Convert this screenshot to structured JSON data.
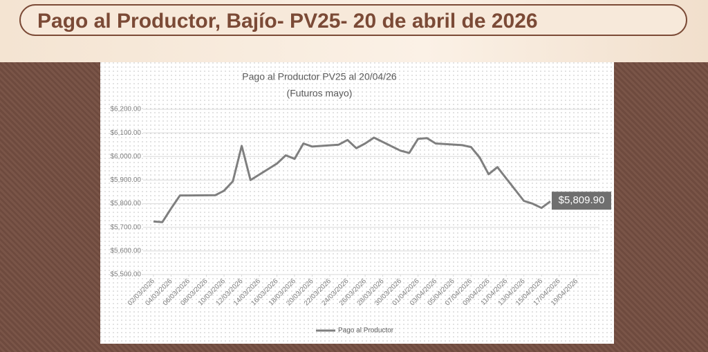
{
  "header": {
    "title": "Pago al Productor, Bajío- PV25- 20 de abril de 2026"
  },
  "chart_data": {
    "type": "line",
    "title": "Pago al Productor PV25 al 20/04/26",
    "subtitle": "(Futuros mayo)",
    "x": [
      "02/03/2026",
      "03/03/2026",
      "04/03/2026",
      "05/03/2026",
      "06/03/2026",
      "09/03/2026",
      "10/03/2026",
      "11/03/2026",
      "12/03/2026",
      "13/03/2026",
      "16/03/2026",
      "17/03/2026",
      "18/03/2026",
      "19/03/2026",
      "20/03/2026",
      "23/03/2026",
      "24/03/2026",
      "25/03/2026",
      "26/03/2026",
      "27/03/2026",
      "30/03/2026",
      "31/03/2026",
      "01/04/2026",
      "02/04/2026",
      "03/04/2026",
      "06/04/2026",
      "07/04/2026",
      "08/04/2026",
      "09/04/2026",
      "10/04/2026",
      "13/04/2026",
      "14/04/2026",
      "15/04/2026",
      "16/04/2026"
    ],
    "series": [
      {
        "name": "Pago al Productor",
        "color": "#7f7f7f",
        "values": [
          5725,
          5722,
          5780,
          5835,
          5835,
          5836,
          5855,
          5895,
          6045,
          5900,
          5970,
          6005,
          5990,
          6055,
          6042,
          6050,
          6070,
          6035,
          6055,
          6080,
          6025,
          6015,
          6075,
          6078,
          6055,
          6048,
          6040,
          5995,
          5925,
          5955,
          5812,
          5800,
          5782,
          5809.9
        ],
        "value_labels": [
          null,
          null,
          null,
          null,
          null,
          null,
          null,
          null,
          null,
          null,
          null,
          null,
          null,
          null,
          null,
          null,
          null,
          null,
          null,
          null,
          null,
          null,
          null,
          null,
          null,
          null,
          null,
          null,
          null,
          null,
          null,
          null,
          null,
          "$5,809.90"
        ]
      }
    ],
    "xlim": [
      "02/03/2026",
      "20/04/2026"
    ],
    "xticks": [
      "02/03/2026",
      "04/03/2026",
      "06/03/2026",
      "08/03/2026",
      "10/03/2026",
      "12/03/2026",
      "14/03/2026",
      "16/03/2026",
      "18/03/2026",
      "20/03/2026",
      "22/03/2026",
      "24/03/2026",
      "26/03/2026",
      "28/03/2026",
      "30/03/2026",
      "01/04/2026",
      "03/04/2026",
      "05/04/2026",
      "07/04/2026",
      "09/04/2026",
      "11/04/2026",
      "13/04/2026",
      "15/04/2026",
      "17/04/2026",
      "19/04/2026"
    ],
    "ylim": [
      5500,
      6200
    ],
    "yticks": [
      {
        "value": 5500,
        "label": "$5,500.00"
      },
      {
        "value": 5600,
        "label": "$5,600.00"
      },
      {
        "value": 5700,
        "label": "$5,700.00"
      },
      {
        "value": 5800,
        "label": "$5,800.00"
      },
      {
        "value": 5900,
        "label": "$5,900.00"
      },
      {
        "value": 6000,
        "label": "$6,000.00"
      },
      {
        "value": 6100,
        "label": "$6,100.00"
      },
      {
        "value": 6200,
        "label": "$6,200.00"
      }
    ],
    "grid": true,
    "legend": "bottom"
  }
}
